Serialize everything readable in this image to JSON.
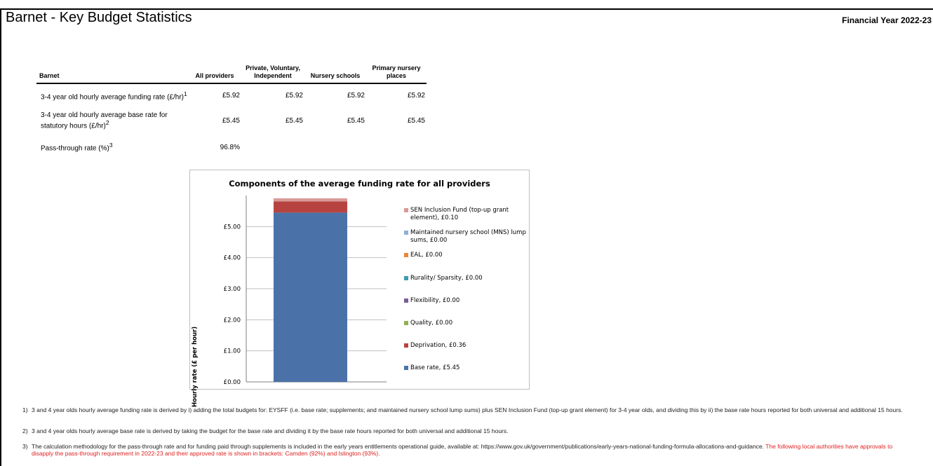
{
  "header": {
    "title": "Barnet - Key Budget Statistics",
    "financial_year": "Financial Year 2022-23"
  },
  "table": {
    "columns": [
      "Barnet",
      "All providers",
      "Private, Voluntary, Independent",
      "Nursery schools",
      "Primary nursery places"
    ],
    "rows": [
      {
        "label": "3-4 year old hourly average funding rate (£/hr)",
        "sup": "1",
        "values": [
          "£5.92",
          "£5.92",
          "£5.92",
          "£5.92"
        ]
      },
      {
        "label": "3-4 year old hourly average base rate for statutory hours (£/hr)",
        "sup": "2",
        "values": [
          "£5.45",
          "£5.45",
          "£5.45",
          "£5.45"
        ]
      },
      {
        "label": "Pass-through rate (%)",
        "sup": "3",
        "values": [
          "96.8%",
          "",
          "",
          ""
        ]
      }
    ]
  },
  "chart_data": {
    "type": "bar",
    "stacked": true,
    "title": "Components of the average funding rate for all providers",
    "ylabel": "Hourly rate (£ per hour)",
    "ylim": [
      0,
      6
    ],
    "yticks": [
      "£0.00",
      "£1.00",
      "£2.00",
      "£3.00",
      "£4.00",
      "£5.00"
    ],
    "grid": true,
    "legend_position": "right",
    "series": [
      {
        "name": "Base rate, £5.45",
        "value": 5.45,
        "color": "#4a72a8"
      },
      {
        "name": "Deprivation, £0.36",
        "value": 0.36,
        "color": "#b74340"
      },
      {
        "name": "Quality, £0.00",
        "value": 0.0,
        "color": "#8fb151"
      },
      {
        "name": "Flexibility, £0.00",
        "value": 0.0,
        "color": "#7a5d9a"
      },
      {
        "name": "Rurality/ Sparsity, £0.00",
        "value": 0.0,
        "color": "#3f9ab5"
      },
      {
        "name": "EAL, £0.00",
        "value": 0.0,
        "color": "#e8873a"
      },
      {
        "name": "Maintained nursery school (MNS) lump sums, £0.00",
        "value": 0.0,
        "color": "#8fb0d8"
      },
      {
        "name": "SEN Inclusion Fund (top-up grant element), £0.10",
        "value": 0.1,
        "color": "#d89a98"
      }
    ]
  },
  "notes": [
    {
      "num": "1)",
      "text": "3 and 4 year olds hourly average funding rate is derived by i) adding the total budgets for: EYSFF (i.e. base rate; supplements; and maintained nursery school lump sums) plus SEN Inclusion Fund (top-up grant element) for 3-4 year olds, and dividing this by ii) the base rate hours reported for both universal and additional 15 hours.",
      "red": ""
    },
    {
      "num": "2)",
      "text": "3 and 4 year olds hourly average base rate is derived by taking the budget for the base rate and dividing it by the base rate hours reported for both universal and additional 15 hours.",
      "red": ""
    },
    {
      "num": "3)",
      "text": "The calculation methodology for the pass-through rate and for funding paid through supplements is included in the early years entitlements operational guide, available at: https://www.gov.uk/government/publications/early-years-national-funding-formula-allocations-and-guidance.",
      "red": "The following local authorities have approvals to disapply the pass-through requirement in 2022-23 and their approved rate is shown in brackets: Camden (92%) and Islington (93%)."
    }
  ]
}
